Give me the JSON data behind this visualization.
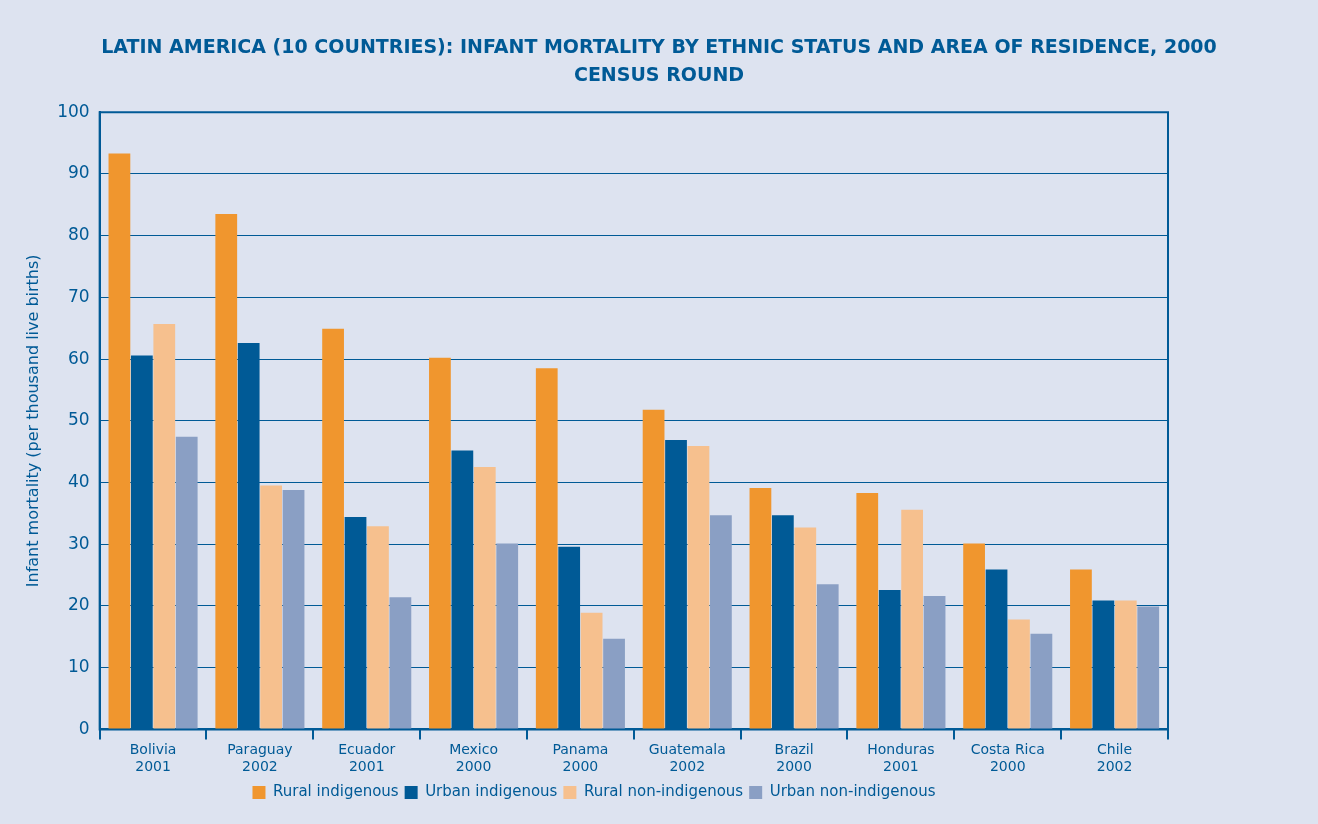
{
  "chart_data": {
    "type": "bar",
    "title": "LATIN AMERICA (10 COUNTRIES): INFANT MORTALITY BY ETHNIC STATUS AND AREA OF RESIDENCE, 2000 CENSUS ROUND",
    "ylabel": "Infant mortality (per thousand live births)",
    "categories": [
      "Bolivia\n2001",
      "Paraguay\n2002",
      "Ecuador\n2001",
      "Mexico\n2000",
      "Panama\n2000",
      "Guatemala\n2002",
      "Brazil\n2000",
      "Honduras\n2001",
      "Costa Rica\n2000",
      "Chile\n2002"
    ],
    "series": [
      {
        "name": "Rural indigenous",
        "color": "#f0962e",
        "values": [
          93.3,
          83.5,
          64.9,
          60.2,
          58.5,
          51.8,
          39.1,
          38.3,
          30.1,
          25.9
        ]
      },
      {
        "name": "Urban indigenous",
        "color": "#005a96",
        "values": [
          60.6,
          62.6,
          34.4,
          45.2,
          29.6,
          46.9,
          34.7,
          22.6,
          25.9,
          20.9
        ]
      },
      {
        "name": "Rural non-indigenous",
        "color": "#f6c08e",
        "values": [
          65.7,
          39.5,
          32.9,
          42.5,
          18.9,
          45.9,
          32.7,
          35.6,
          17.8,
          20.9
        ]
      },
      {
        "name": "Urban non-indigenous",
        "color": "#8a9fc4",
        "values": [
          47.4,
          38.8,
          21.4,
          30.1,
          14.7,
          34.7,
          23.5,
          21.6,
          15.5,
          19.9
        ]
      }
    ],
    "ylim": [
      0,
      100
    ],
    "yticks": [
      0,
      10,
      20,
      30,
      40,
      50,
      60,
      70,
      80,
      90,
      100
    ],
    "grid": "y",
    "legend": "bottom"
  }
}
